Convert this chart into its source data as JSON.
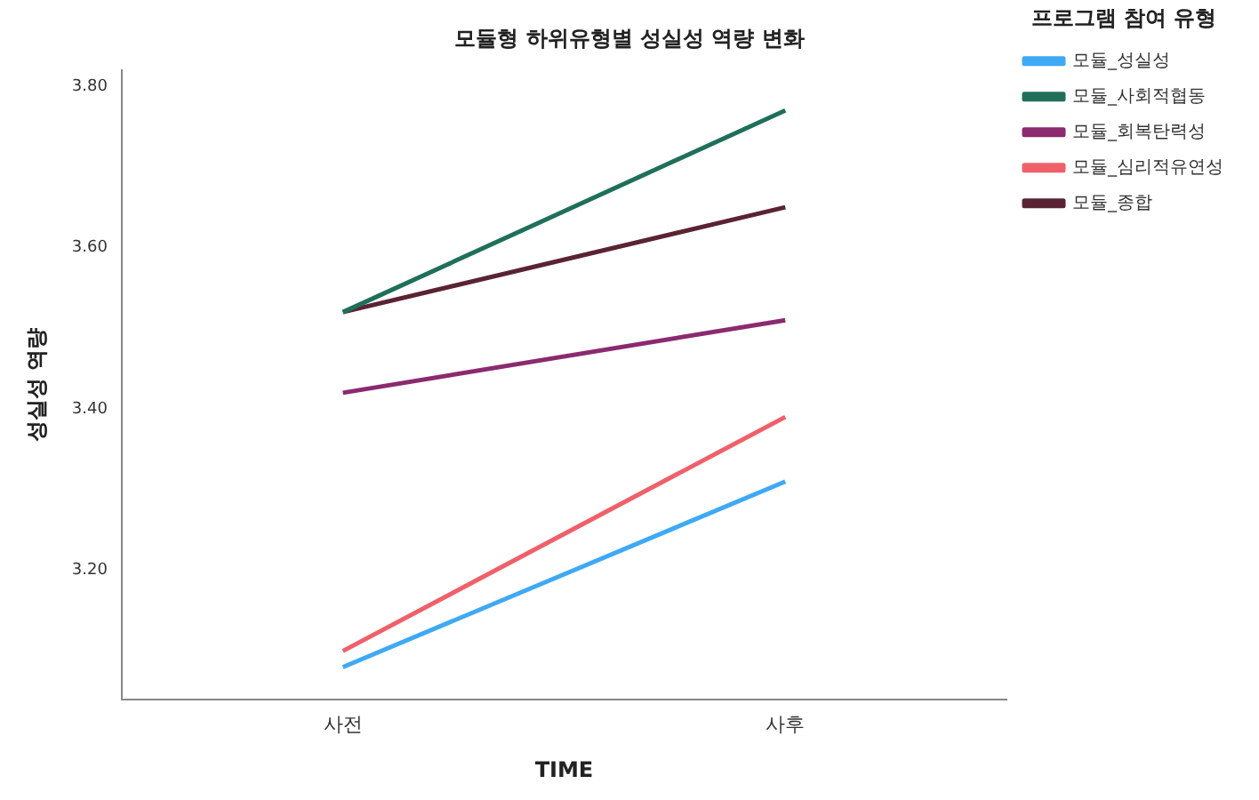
{
  "chart_data": {
    "type": "line",
    "title": "모듈형 하위유형별 성실성 역량 변화",
    "xlabel": "TIME",
    "ylabel": "성실성 역량",
    "legend_title": "프로그램 참여 유형",
    "categories": [
      "사전",
      "사후"
    ],
    "series": [
      {
        "name": "모듈_성실성",
        "color": "#3fa9f5",
        "values": [
          3.08,
          3.31
        ]
      },
      {
        "name": "모듈_사회적협동",
        "color": "#1f6f5b",
        "values": [
          3.52,
          3.77
        ]
      },
      {
        "name": "모듈_회복탄력성",
        "color": "#8b2a6f",
        "values": [
          3.42,
          3.51
        ]
      },
      {
        "name": "모듈_심리적유연성",
        "color": "#f0606a",
        "values": [
          3.1,
          3.39
        ]
      },
      {
        "name": "모듈_종합",
        "color": "#5a2333",
        "values": [
          3.52,
          3.65
        ]
      }
    ],
    "ylim": [
      3.04,
      3.82
    ],
    "yticks": [
      {
        "value": 3.2,
        "label": "3.20"
      },
      {
        "value": 3.4,
        "label": "3.40"
      },
      {
        "value": 3.6,
        "label": "3.60"
      },
      {
        "value": 3.8,
        "label": "3.80"
      }
    ],
    "grid": false,
    "legend": "right",
    "marker": "none",
    "line_style": "solid"
  }
}
